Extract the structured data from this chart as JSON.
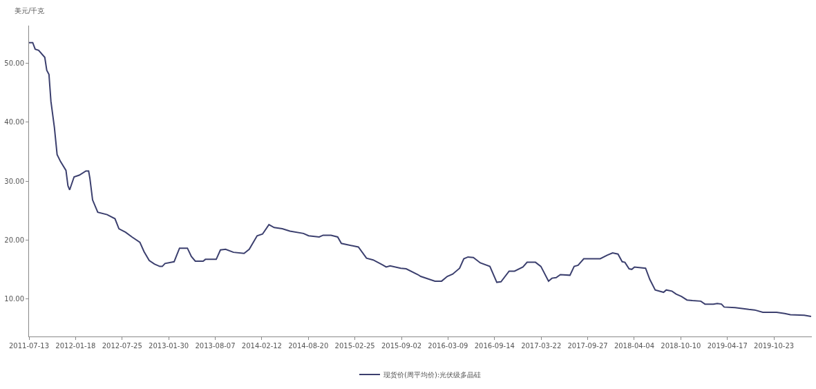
{
  "chart_data": {
    "type": "line",
    "ylabel": "美元/千克",
    "legend": "bottom",
    "grid": false,
    "marker": "none",
    "line_style": "solid",
    "xlim": [
      "2011-07-13",
      "2020-03-25"
    ],
    "ylim": [
      3.6,
      56.4
    ],
    "xticks": [
      "2011-07-13",
      "2012-01-18",
      "2012-07-25",
      "2013-01-30",
      "2013-08-07",
      "2014-02-12",
      "2014-08-20",
      "2015-02-25",
      "2015-09-02",
      "2016-03-09",
      "2016-09-14",
      "2017-03-22",
      "2017-09-27",
      "2018-04-04",
      "2018-10-10",
      "2019-04-17",
      "2019-10-23"
    ],
    "yticks": [
      {
        "value": 10,
        "label": "10.00"
      },
      {
        "value": 20,
        "label": "20.00"
      },
      {
        "value": 30,
        "label": "30.00"
      },
      {
        "value": 40,
        "label": "40.00"
      },
      {
        "value": 50,
        "label": "50.00"
      }
    ],
    "x": [
      "2011-07-13",
      "2011-07-28",
      "2011-08-07",
      "2011-08-21",
      "2011-09-15",
      "2011-09-23",
      "2011-10-02",
      "2011-10-10",
      "2011-10-24",
      "2011-11-04",
      "2011-11-18",
      "2011-12-10",
      "2011-12-18",
      "2011-12-25",
      "2012-01-12",
      "2012-02-02",
      "2012-02-29",
      "2012-03-11",
      "2012-03-16",
      "2012-03-27",
      "2012-04-17",
      "2012-05-25",
      "2012-06-26",
      "2012-07-12",
      "2012-08-08",
      "2012-09-03",
      "2012-10-05",
      "2012-10-22",
      "2012-11-12",
      "2012-12-03",
      "2012-12-25",
      "2013-01-04",
      "2013-01-15",
      "2013-02-21",
      "2013-03-15",
      "2013-04-16",
      "2013-05-02",
      "2013-05-18",
      "2013-06-19",
      "2013-06-28",
      "2013-08-11",
      "2013-08-28",
      "2013-09-18",
      "2013-10-20",
      "2013-12-02",
      "2013-12-23",
      "2014-01-24",
      "2014-02-15",
      "2014-03-13",
      "2014-04-03",
      "2014-05-06",
      "2014-06-06",
      "2014-07-31",
      "2014-08-21",
      "2014-10-03",
      "2014-10-19",
      "2014-11-20",
      "2014-12-17",
      "2015-01-01",
      "2015-03-11",
      "2015-04-13",
      "2015-05-10",
      "2015-06-16",
      "2015-07-02",
      "2015-07-18",
      "2015-08-30",
      "2015-09-21",
      "2015-11-08",
      "2015-11-19",
      "2016-01-16",
      "2016-02-12",
      "2016-03-06",
      "2016-03-28",
      "2016-04-25",
      "2016-05-12",
      "2016-05-29",
      "2016-06-20",
      "2016-07-18",
      "2016-08-26",
      "2016-09-23",
      "2016-10-10",
      "2016-11-12",
      "2016-12-04",
      "2017-01-07",
      "2017-01-24",
      "2017-02-27",
      "2017-03-21",
      "2017-04-21",
      "2017-05-05",
      "2017-05-22",
      "2017-06-08",
      "2017-07-17",
      "2017-08-03",
      "2017-08-19",
      "2017-09-11",
      "2017-11-17",
      "2017-12-15",
      "2018-01-06",
      "2018-01-28",
      "2018-02-14",
      "2018-02-25",
      "2018-03-14",
      "2018-03-25",
      "2018-04-05",
      "2018-05-20",
      "2018-06-06",
      "2018-06-28",
      "2018-08-01",
      "2018-08-12",
      "2018-09-04",
      "2018-09-21",
      "2018-10-13",
      "2018-11-04",
      "2018-11-26",
      "2018-12-30",
      "2019-01-16",
      "2019-02-19",
      "2019-03-07",
      "2019-03-24",
      "2019-04-04",
      "2019-05-19",
      "2019-07-13",
      "2019-08-06",
      "2019-09-08",
      "2019-11-03",
      "2019-12-06",
      "2019-12-29",
      "2020-02-23",
      "2020-03-22"
    ],
    "series": [
      {
        "name": "现货价(周平均价):光伏级多晶硅",
        "color": "#3b3f6e",
        "values": [
          53.5,
          53.5,
          52.4,
          52.2,
          51.0,
          48.8,
          48.1,
          43.5,
          39.1,
          34.5,
          33.3,
          31.8,
          29.2,
          28.5,
          30.7,
          31.0,
          31.7,
          31.7,
          30.5,
          26.8,
          24.7,
          24.3,
          23.6,
          21.9,
          21.3,
          20.5,
          19.6,
          18.0,
          16.5,
          15.9,
          15.5,
          15.5,
          16.0,
          16.3,
          18.6,
          18.6,
          17.2,
          16.4,
          16.4,
          16.7,
          16.7,
          18.3,
          18.4,
          17.9,
          17.7,
          18.4,
          20.7,
          21.0,
          22.6,
          22.1,
          21.9,
          21.5,
          21.1,
          20.7,
          20.5,
          20.8,
          20.8,
          20.5,
          19.4,
          18.8,
          16.9,
          16.6,
          15.8,
          15.4,
          15.6,
          15.2,
          15.1,
          14.1,
          13.8,
          13.0,
          13.0,
          13.8,
          14.2,
          15.2,
          16.8,
          17.1,
          17.0,
          16.1,
          15.5,
          12.8,
          12.9,
          14.7,
          14.7,
          15.4,
          16.2,
          16.2,
          15.5,
          13.0,
          13.5,
          13.6,
          14.1,
          14.0,
          15.5,
          15.7,
          16.8,
          16.8,
          17.4,
          17.8,
          17.6,
          16.3,
          16.2,
          15.1,
          15.0,
          15.4,
          15.2,
          13.3,
          11.5,
          11.1,
          11.5,
          11.3,
          10.8,
          10.4,
          9.8,
          9.7,
          9.6,
          9.1,
          9.1,
          9.2,
          9.1,
          8.6,
          8.5,
          8.2,
          8.1,
          7.7,
          7.7,
          7.5,
          7.3,
          7.2,
          7.0
        ]
      }
    ]
  }
}
